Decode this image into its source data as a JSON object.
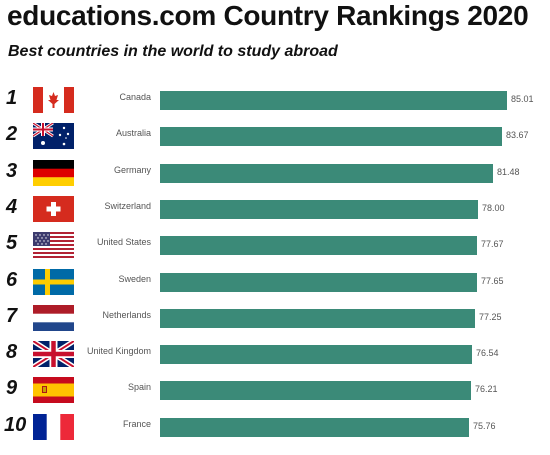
{
  "title": "educations.com Country Rankings 2020",
  "subtitle": "Best countries in the world to study abroad",
  "colors": {
    "bar": "#3b8a78"
  },
  "chart_data": {
    "type": "bar",
    "orientation": "horizontal",
    "categories": [
      "Canada",
      "Australia",
      "Germany",
      "Switzerland",
      "United States",
      "Sweden",
      "Netherlands",
      "United Kingdom",
      "Spain",
      "France"
    ],
    "ranks": [
      "1",
      "2",
      "3",
      "4",
      "5",
      "6",
      "7",
      "8",
      "9",
      "10"
    ],
    "values": [
      85.01,
      83.67,
      81.48,
      78.0,
      77.67,
      77.65,
      77.25,
      76.54,
      76.21,
      75.76
    ],
    "value_labels": [
      "85.01",
      "83.67",
      "81.48",
      "78.00",
      "77.67",
      "77.65",
      "77.25",
      "76.54",
      "76.21",
      "75.76"
    ],
    "flag_icons": [
      "canada-flag-icon",
      "australia-flag-icon",
      "germany-flag-icon",
      "switzerland-flag-icon",
      "united-states-flag-icon",
      "sweden-flag-icon",
      "netherlands-flag-icon",
      "united-kingdom-flag-icon",
      "spain-flag-icon",
      "france-flag-icon"
    ],
    "xlabel": "",
    "ylabel": "",
    "grid": false,
    "legend": "none"
  }
}
